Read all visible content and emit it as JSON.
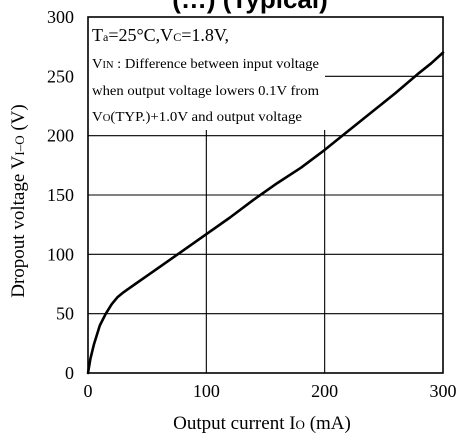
{
  "chart_data": {
    "type": "line",
    "title": "(…) (Typical)",
    "xlabel": "Output current I",
    "xlabel_sub": "O",
    "xlabel_unit": " (mA)",
    "ylabel": "Dropout voltage V",
    "ylabel_sub": "I–O",
    "ylabel_unit": " (V)",
    "xlim": [
      0,
      300
    ],
    "ylim": [
      0,
      300
    ],
    "xticks": [
      0,
      100,
      200,
      300
    ],
    "yticks": [
      0,
      50,
      100,
      150,
      200,
      250,
      300
    ],
    "grid": true,
    "series": [
      {
        "x": [
          0,
          2,
          5,
          10,
          15,
          20,
          25,
          30,
          40,
          50,
          60,
          80,
          100,
          120,
          140,
          160,
          180,
          200,
          220,
          240,
          260,
          280,
          290,
          300
        ],
        "y": [
          0,
          12,
          24,
          40,
          50,
          58,
          64,
          68,
          75,
          82,
          89,
          103,
          117,
          131,
          146,
          160,
          173,
          188,
          204,
          220,
          236,
          253,
          261,
          270
        ]
      }
    ],
    "annotation": {
      "line1_a": "T",
      "line1_a_sub": "a",
      "line1_b": "=25°C,V",
      "line1_b_sub": "C",
      "line1_c": "=1.8V,",
      "line2_a": "V",
      "line2_a_sub": "IN",
      "line2_b": " : Difference between input voltage",
      "line3": "when output voltage lowers 0.1V from",
      "line4_a": "V",
      "line4_a_sub": "O",
      "line4_b": "(TYP.)+1.0V and output voltage"
    }
  }
}
